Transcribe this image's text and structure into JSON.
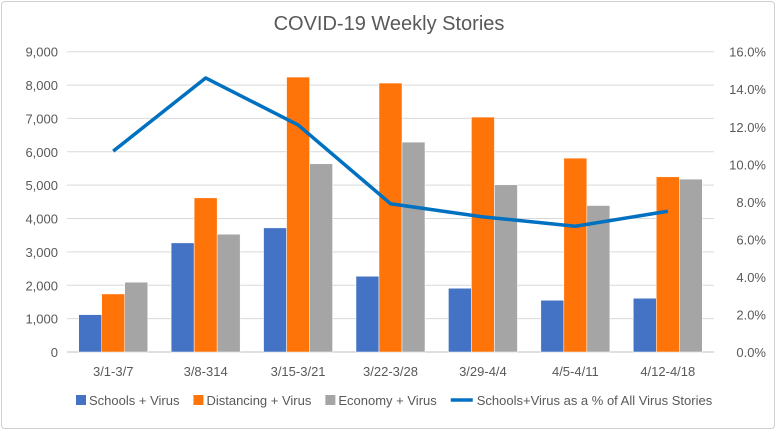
{
  "chart_data": {
    "type": "bar",
    "title": "COVID-19 Weekly Stories",
    "categories": [
      "3/1-3/7",
      "3/8-314",
      "3/15-3/21",
      "3/22-3/28",
      "3/29-4/4",
      "4/5-4/11",
      "4/12-4/18"
    ],
    "series": [
      {
        "name": "Schools + Virus",
        "type": "bar",
        "axis": "left",
        "color": "#4472C4",
        "values": [
          1120,
          3270,
          3720,
          2270,
          1910,
          1550,
          1610
        ]
      },
      {
        "name": "Distancing + Virus",
        "type": "bar",
        "axis": "left",
        "color": "#FF7408",
        "values": [
          1740,
          4620,
          8240,
          8060,
          7040,
          5810,
          5250
        ]
      },
      {
        "name": "Economy + Virus",
        "type": "bar",
        "axis": "left",
        "color": "#A5A5A5",
        "values": [
          2090,
          3530,
          5640,
          6290,
          5010,
          4390,
          5180
        ]
      },
      {
        "name": "Schools+Virus as a % of All Virus Stories",
        "type": "line",
        "axis": "right",
        "color": "#0070C0",
        "values": [
          10.7,
          14.6,
          12.1,
          7.9,
          7.2,
          6.7,
          7.5
        ]
      }
    ],
    "y_left": {
      "range": [
        0,
        9000
      ],
      "ticks": [
        "0",
        "1,000",
        "2,000",
        "3,000",
        "4,000",
        "5,000",
        "6,000",
        "7,000",
        "8,000",
        "9,000"
      ]
    },
    "y_right": {
      "range": [
        0,
        16
      ],
      "ticks": [
        "0.0%",
        "2.0%",
        "4.0%",
        "6.0%",
        "8.0%",
        "10.0%",
        "12.0%",
        "14.0%",
        "16.0%"
      ]
    },
    "grid": true,
    "legend": "bottom"
  }
}
